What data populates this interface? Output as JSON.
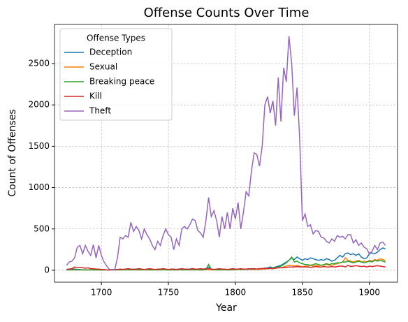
{
  "chart_data": {
    "type": "line",
    "title": "Offense Counts Over Time",
    "xlabel": "Year",
    "ylabel": "Count of Offenses",
    "legend_title": "Offense Types",
    "legend": "upper left",
    "grid": true,
    "xlim": [
      1665,
      1921
    ],
    "ylim": [
      -144,
      2973
    ],
    "xticks": [
      1700,
      1750,
      1800,
      1850,
      1900
    ],
    "yticks": [
      0,
      500,
      1000,
      1500,
      2000,
      2500
    ],
    "x": [
      1674,
      1676,
      1678,
      1680,
      1682,
      1684,
      1686,
      1688,
      1690,
      1692,
      1694,
      1696,
      1698,
      1700,
      1702,
      1704,
      1706,
      1708,
      1710,
      1712,
      1714,
      1716,
      1718,
      1720,
      1722,
      1724,
      1726,
      1728,
      1730,
      1732,
      1734,
      1736,
      1738,
      1740,
      1742,
      1744,
      1746,
      1748,
      1750,
      1752,
      1754,
      1756,
      1758,
      1760,
      1762,
      1764,
      1766,
      1768,
      1770,
      1772,
      1774,
      1776,
      1778,
      1780,
      1782,
      1784,
      1786,
      1788,
      1790,
      1792,
      1794,
      1796,
      1798,
      1800,
      1802,
      1804,
      1806,
      1808,
      1810,
      1812,
      1814,
      1816,
      1818,
      1820,
      1822,
      1824,
      1826,
      1828,
      1830,
      1832,
      1834,
      1836,
      1838,
      1840,
      1842,
      1844,
      1846,
      1848,
      1850,
      1852,
      1854,
      1856,
      1858,
      1860,
      1862,
      1864,
      1866,
      1868,
      1870,
      1872,
      1874,
      1876,
      1878,
      1880,
      1882,
      1884,
      1886,
      1888,
      1890,
      1892,
      1894,
      1896,
      1898,
      1900,
      1902,
      1904,
      1906,
      1908,
      1910,
      1912
    ],
    "series": [
      {
        "name": "Deception",
        "color": "#1f77b4",
        "values": [
          10,
          15,
          20,
          15,
          10,
          10,
          5,
          5,
          5,
          5,
          5,
          5,
          5,
          5,
          5,
          5,
          5,
          5,
          5,
          10,
          10,
          10,
          15,
          10,
          10,
          15,
          10,
          10,
          10,
          10,
          10,
          10,
          10,
          10,
          10,
          15,
          10,
          10,
          10,
          10,
          10,
          10,
          15,
          10,
          15,
          15,
          15,
          20,
          15,
          15,
          15,
          15,
          20,
          40,
          15,
          10,
          10,
          10,
          10,
          10,
          10,
          10,
          15,
          10,
          15,
          15,
          10,
          15,
          15,
          20,
          20,
          15,
          15,
          20,
          25,
          30,
          40,
          30,
          40,
          50,
          60,
          80,
          100,
          120,
          150,
          130,
          160,
          140,
          120,
          140,
          130,
          150,
          140,
          130,
          120,
          130,
          120,
          140,
          130,
          110,
          120,
          150,
          180,
          160,
          200,
          210,
          190,
          200,
          180,
          200,
          160,
          140,
          150,
          200,
          210,
          200,
          220,
          250,
          270,
          260
        ]
      },
      {
        "name": "Sexual",
        "color": "#ff7f0e",
        "values": [
          5,
          5,
          5,
          5,
          5,
          5,
          5,
          5,
          5,
          5,
          5,
          5,
          5,
          5,
          5,
          5,
          5,
          5,
          5,
          5,
          5,
          5,
          10,
          5,
          5,
          10,
          5,
          5,
          5,
          10,
          5,
          5,
          5,
          10,
          5,
          5,
          10,
          5,
          5,
          5,
          5,
          5,
          10,
          5,
          5,
          10,
          5,
          5,
          10,
          5,
          5,
          5,
          10,
          5,
          5,
          10,
          5,
          5,
          5,
          10,
          5,
          5,
          10,
          5,
          10,
          5,
          10,
          10,
          10,
          10,
          10,
          10,
          10,
          15,
          15,
          20,
          20,
          20,
          25,
          30,
          30,
          40,
          50,
          60,
          60,
          50,
          60,
          50,
          40,
          50,
          50,
          60,
          50,
          60,
          50,
          60,
          60,
          70,
          60,
          60,
          70,
          80,
          90,
          100,
          150,
          120,
          110,
          100,
          110,
          120,
          100,
          110,
          100,
          120,
          110,
          130,
          120,
          140,
          130,
          120
        ]
      },
      {
        "name": "Breaking peace",
        "color": "#2ca02c",
        "values": [
          5,
          5,
          5,
          5,
          5,
          5,
          5,
          5,
          5,
          5,
          5,
          5,
          5,
          5,
          5,
          5,
          5,
          5,
          5,
          5,
          5,
          5,
          5,
          5,
          5,
          5,
          5,
          5,
          5,
          5,
          5,
          5,
          5,
          5,
          5,
          5,
          5,
          5,
          5,
          5,
          5,
          5,
          5,
          5,
          5,
          5,
          5,
          5,
          5,
          5,
          5,
          5,
          10,
          70,
          10,
          5,
          5,
          5,
          5,
          5,
          5,
          5,
          5,
          10,
          10,
          10,
          10,
          10,
          15,
          15,
          15,
          15,
          20,
          20,
          20,
          20,
          25,
          30,
          35,
          40,
          50,
          70,
          90,
          120,
          160,
          100,
          110,
          90,
          80,
          70,
          70,
          60,
          70,
          80,
          70,
          60,
          70,
          80,
          70,
          80,
          80,
          90,
          90,
          100,
          100,
          110,
          100,
          90,
          100,
          110,
          100,
          90,
          100,
          110,
          100,
          120,
          110,
          120,
          110,
          100
        ]
      },
      {
        "name": "Kill",
        "color": "#d62728",
        "values": [
          10,
          15,
          20,
          40,
          30,
          35,
          30,
          25,
          30,
          20,
          20,
          15,
          15,
          10,
          10,
          5,
          5,
          5,
          10,
          10,
          15,
          10,
          15,
          20,
          15,
          10,
          15,
          20,
          15,
          10,
          15,
          20,
          15,
          10,
          15,
          15,
          20,
          15,
          10,
          15,
          15,
          10,
          15,
          20,
          15,
          10,
          15,
          20,
          15,
          15,
          20,
          15,
          15,
          20,
          15,
          10,
          15,
          20,
          15,
          15,
          10,
          15,
          20,
          15,
          15,
          20,
          15,
          15,
          20,
          15,
          20,
          15,
          20,
          20,
          25,
          20,
          25,
          20,
          25,
          30,
          30,
          30,
          35,
          40,
          40,
          40,
          45,
          40,
          40,
          40,
          40,
          35,
          40,
          45,
          40,
          40,
          45,
          40,
          40,
          45,
          40,
          45,
          50,
          50,
          40,
          60,
          45,
          50,
          55,
          50,
          45,
          50,
          40,
          50,
          45,
          50,
          55,
          50,
          45,
          40
        ]
      },
      {
        "name": "Theft",
        "color": "#9467bd",
        "values": [
          60,
          100,
          110,
          150,
          280,
          300,
          200,
          300,
          230,
          180,
          310,
          150,
          300,
          180,
          100,
          50,
          10,
          10,
          10,
          150,
          400,
          380,
          420,
          400,
          580,
          470,
          530,
          480,
          380,
          500,
          430,
          380,
          300,
          250,
          350,
          300,
          420,
          500,
          430,
          400,
          250,
          380,
          300,
          500,
          530,
          500,
          550,
          620,
          600,
          480,
          450,
          400,
          600,
          880,
          650,
          720,
          600,
          400,
          650,
          500,
          700,
          500,
          750,
          620,
          820,
          500,
          700,
          950,
          900,
          1200,
          1420,
          1400,
          1260,
          1500,
          2000,
          2100,
          1900,
          2050,
          1750,
          2330,
          1800,
          2450,
          2280,
          2830,
          2500,
          1870,
          2210,
          1580,
          600,
          680,
          530,
          550,
          440,
          480,
          470,
          400,
          390,
          350,
          330,
          380,
          350,
          420,
          400,
          410,
          380,
          430,
          430,
          330,
          370,
          300,
          330,
          280,
          260,
          200,
          230,
          300,
          250,
          330,
          340,
          300
        ]
      }
    ]
  }
}
